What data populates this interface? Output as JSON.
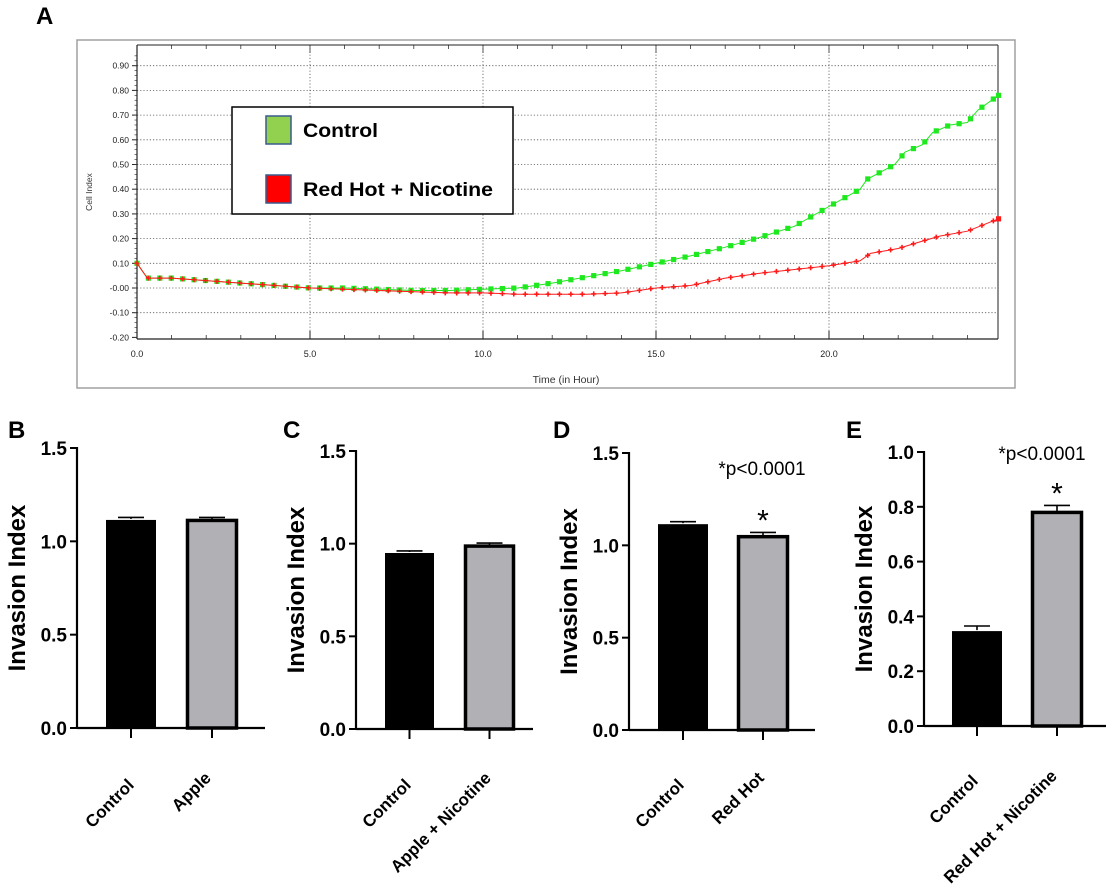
{
  "panel_labels": [
    "A",
    "B",
    "C",
    "D",
    "E"
  ],
  "chart_data": [
    {
      "panel": "A",
      "type": "line",
      "title": "",
      "xlabel": "Time (in Hour)",
      "ylabel": "Cell Index",
      "xlim": [
        0,
        24.9
      ],
      "ylim": [
        -0.2,
        0.95
      ],
      "xticks": [
        0,
        5,
        10,
        15,
        20
      ],
      "xtick_labels": [
        "0.0",
        "5.0",
        "10.0",
        "15.0",
        "20.0"
      ],
      "yticks": [
        -0.2,
        -0.1,
        0,
        0.1,
        0.2,
        0.3,
        0.4,
        0.5,
        0.6,
        0.7,
        0.8,
        0.9
      ],
      "ytick_labels": [
        "-0.20",
        "-0.10",
        "-0.00",
        "0.10",
        "0.20",
        "0.30",
        "0.40",
        "0.50",
        "0.60",
        "0.70",
        "0.80",
        "0.90"
      ],
      "grid": true,
      "legend_position": "upper-left",
      "sampling_interval_h": 0.33,
      "series": [
        {
          "name": "Control",
          "line_color": "#1ee81e",
          "legend_color": "#92d050",
          "points": [
            [
              0,
              0.1
            ],
            [
              0.3,
              0.04
            ],
            [
              1,
              0.04
            ],
            [
              2,
              0.03
            ],
            [
              3,
              0.02
            ],
            [
              4,
              0.01
            ],
            [
              5,
              0.0
            ],
            [
              6,
              0.0
            ],
            [
              7,
              -0.005
            ],
            [
              8,
              -0.01
            ],
            [
              9,
              -0.01
            ],
            [
              10,
              -0.005
            ],
            [
              11,
              0.0
            ],
            [
              12,
              0.02
            ],
            [
              13,
              0.045
            ],
            [
              14,
              0.07
            ],
            [
              15,
              0.1
            ],
            [
              16,
              0.13
            ],
            [
              17,
              0.165
            ],
            [
              18,
              0.205
            ],
            [
              19,
              0.25
            ],
            [
              20,
              0.33
            ],
            [
              20.9,
              0.4
            ],
            [
              21.1,
              0.44
            ],
            [
              21.5,
              0.47
            ],
            [
              21.9,
              0.5
            ],
            [
              22.2,
              0.55
            ],
            [
              22.7,
              0.58
            ],
            [
              23.0,
              0.63
            ],
            [
              23.5,
              0.66
            ],
            [
              24.0,
              0.67
            ],
            [
              24.3,
              0.72
            ],
            [
              24.9,
              0.78
            ]
          ]
        },
        {
          "name": "Red Hot + Nicotine",
          "line_color": "#ff1a1a",
          "legend_color": "#ff0000",
          "points": [
            [
              0,
              0.1
            ],
            [
              0.3,
              0.04
            ],
            [
              1,
              0.04
            ],
            [
              2,
              0.03
            ],
            [
              3,
              0.02
            ],
            [
              4,
              0.01
            ],
            [
              5,
              0.0
            ],
            [
              6,
              -0.005
            ],
            [
              7,
              -0.01
            ],
            [
              8,
              -0.015
            ],
            [
              9,
              -0.02
            ],
            [
              10,
              -0.02
            ],
            [
              11,
              -0.025
            ],
            [
              12,
              -0.025
            ],
            [
              13,
              -0.025
            ],
            [
              14,
              -0.02
            ],
            [
              15,
              0.0
            ],
            [
              16,
              0.01
            ],
            [
              17,
              0.04
            ],
            [
              18,
              0.06
            ],
            [
              19,
              0.075
            ],
            [
              20,
              0.09
            ],
            [
              20.9,
              0.11
            ],
            [
              21.2,
              0.14
            ],
            [
              22,
              0.16
            ],
            [
              22.7,
              0.19
            ],
            [
              23.2,
              0.21
            ],
            [
              24,
              0.23
            ],
            [
              24.9,
              0.28
            ]
          ]
        }
      ]
    },
    {
      "panel": "B",
      "type": "bar",
      "ylabel": "Invasion Index",
      "ylim": [
        0,
        1.5
      ],
      "yticks": [
        0,
        0.5,
        1.0,
        1.5
      ],
      "ytick_labels": [
        "0.0",
        "0.5",
        "1.0",
        "1.5"
      ],
      "categories": [
        "Control",
        "Apple"
      ],
      "values": [
        1.12,
        1.12
      ],
      "errors": [
        0.008,
        0.008
      ],
      "colors": [
        "#000000",
        "#b0b0b5"
      ],
      "significance": [
        "",
        ""
      ],
      "annotation": ""
    },
    {
      "panel": "C",
      "type": "bar",
      "ylabel": "Invasion Index",
      "ylim": [
        0,
        1.5
      ],
      "yticks": [
        0,
        0.5,
        1.0,
        1.5
      ],
      "ytick_labels": [
        "0.0",
        "0.5",
        "1.0",
        "1.5"
      ],
      "categories": [
        "Control",
        "Apple + Nicotine"
      ],
      "values": [
        0.955,
        0.995
      ],
      "errors": [
        0.006,
        0.008
      ],
      "colors": [
        "#000000",
        "#b0b0b5"
      ],
      "significance": [
        "",
        ""
      ],
      "annotation": ""
    },
    {
      "panel": "D",
      "type": "bar",
      "ylabel": "Invasion Index",
      "ylim": [
        0,
        1.5
      ],
      "yticks": [
        0,
        0.5,
        1.0,
        1.5
      ],
      "ytick_labels": [
        "0.0",
        "0.5",
        "1.0",
        "1.5"
      ],
      "categories": [
        "Control",
        "Red Hot"
      ],
      "values": [
        1.12,
        1.055
      ],
      "errors": [
        0.008,
        0.015
      ],
      "colors": [
        "#000000",
        "#b0b0b5"
      ],
      "significance": [
        "",
        "*"
      ],
      "annotation": "*p<0.0001"
    },
    {
      "panel": "E",
      "type": "bar",
      "ylabel": "Invasion Index",
      "ylim": [
        0,
        1.0
      ],
      "yticks": [
        0,
        0.2,
        0.4,
        0.6,
        0.8,
        1.0
      ],
      "ytick_labels": [
        "0.0",
        "0.2",
        "0.4",
        "0.6",
        "0.8",
        "1.0"
      ],
      "categories": [
        "Control",
        "Red Hot + Nicotine"
      ],
      "values": [
        0.35,
        0.785
      ],
      "errors": [
        0.015,
        0.02
      ],
      "colors": [
        "#000000",
        "#b0b0b5"
      ],
      "significance": [
        "",
        "*"
      ],
      "annotation": "*p<0.0001"
    }
  ]
}
